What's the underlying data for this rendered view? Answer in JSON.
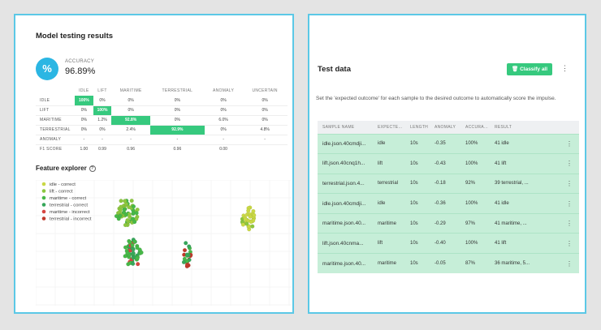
{
  "model_testing": {
    "title": "Model testing results",
    "accuracy_icon": "percent-icon",
    "accuracy_symbol": "%",
    "accuracy_label": "ACCURACY",
    "accuracy_value": "96.89%"
  },
  "confusion_matrix": {
    "columns": [
      "IDLE",
      "LIFT",
      "MARITIME",
      "TERRESTRIAL",
      "ANOMALY",
      "UNCERTAIN"
    ],
    "rows": [
      {
        "label": "IDLE",
        "cells": [
          "100%",
          "0%",
          "0%",
          "0%",
          "0%",
          "0%"
        ],
        "highlight": 0
      },
      {
        "label": "LIFT",
        "cells": [
          "0%",
          "100%",
          "0%",
          "0%",
          "0%",
          "0%"
        ],
        "highlight": 1
      },
      {
        "label": "MARITIME",
        "cells": [
          "0%",
          "1.2%",
          "92.8%",
          "0%",
          "6.0%",
          "0%"
        ],
        "highlight": 2
      },
      {
        "label": "TERRESTRIAL",
        "cells": [
          "0%",
          "0%",
          "2.4%",
          "92.9%",
          "0%",
          "4.8%"
        ],
        "highlight": 3
      },
      {
        "label": "ANOMALY",
        "cells": [
          "-",
          "-",
          "-",
          "-",
          "-",
          "-"
        ],
        "highlight": -1
      },
      {
        "label": "F1 SCORE",
        "cells": [
          "1.00",
          "0.99",
          "0.96",
          "0.96",
          "0.00",
          ""
        ],
        "highlight": -1
      }
    ],
    "highlight_color": "#36c97e"
  },
  "feature_explorer": {
    "title": "Feature explorer",
    "help_icon": "help-circle-icon",
    "help_symbol": "?",
    "legend": [
      {
        "label": "idle - correct",
        "color": "#c9d845"
      },
      {
        "label": "lift - correct",
        "color": "#8cc63f"
      },
      {
        "label": "maritime - correct",
        "color": "#47b848"
      },
      {
        "label": "terrestrial - correct",
        "color": "#36a65a"
      },
      {
        "label": "maritime - incorrect",
        "color": "#d64541"
      },
      {
        "label": "terrestrial - incorrect",
        "color": "#c0392b"
      }
    ]
  },
  "test_data": {
    "title": "Test data",
    "classify_icon": "trash-icon",
    "classify_label": "Classify all",
    "menu_icon": "kebab-menu-icon",
    "description": "Set the 'expected outcome' for each sample to the desired outcome to automatically score the impulse.",
    "columns": [
      "SAMPLE NAME",
      "EXPECTE...",
      "LENGTH",
      "ANOMALY",
      "ACCURA...",
      "RESULT"
    ],
    "rows": [
      {
        "name": "idle.json.40cmdji...",
        "expected": "idle",
        "length": "10s",
        "anomaly": "-0.35",
        "accuracy": "100%",
        "result": "41 idle"
      },
      {
        "name": "lift.json.40cnq1h...",
        "expected": "lift",
        "length": "10s",
        "anomaly": "-0.43",
        "accuracy": "100%",
        "result": "41 lift"
      },
      {
        "name": "terrestrial.json.4...",
        "expected": "terrestrial",
        "length": "10s",
        "anomaly": "-0.18",
        "accuracy": "92%",
        "result": "39 terrestrial, ..."
      },
      {
        "name": "idle.json.40cmdji...",
        "expected": "idle",
        "length": "10s",
        "anomaly": "-0.36",
        "accuracy": "100%",
        "result": "41 idle"
      },
      {
        "name": "maritime.json.40...",
        "expected": "maritime",
        "length": "10s",
        "anomaly": "-0.29",
        "accuracy": "97%",
        "result": "41 maritime, ..."
      },
      {
        "name": "lift.json.40cnma...",
        "expected": "lift",
        "length": "10s",
        "anomaly": "-0.40",
        "accuracy": "100%",
        "result": "41 lift"
      },
      {
        "name": "maritime.json.40...",
        "expected": "maritime",
        "length": "10s",
        "anomaly": "-0.05",
        "accuracy": "87%",
        "result": "36 maritime, 5..."
      }
    ],
    "row_color": "#c6eed8",
    "row_menu_symbol": "⋮"
  }
}
